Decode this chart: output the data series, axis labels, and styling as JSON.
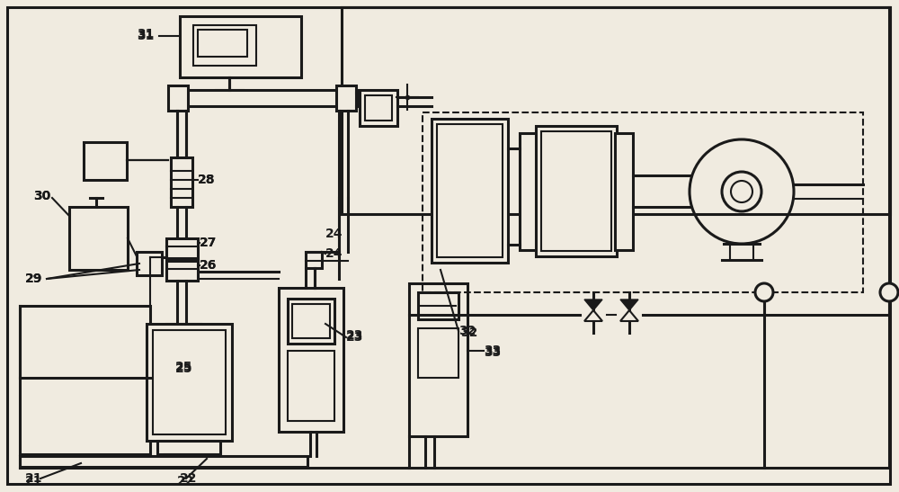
{
  "bg_color": "#f0ebe0",
  "line_color": "#1a1a1a",
  "lw": 1.5,
  "lw2": 2.2,
  "lw3": 3.0
}
